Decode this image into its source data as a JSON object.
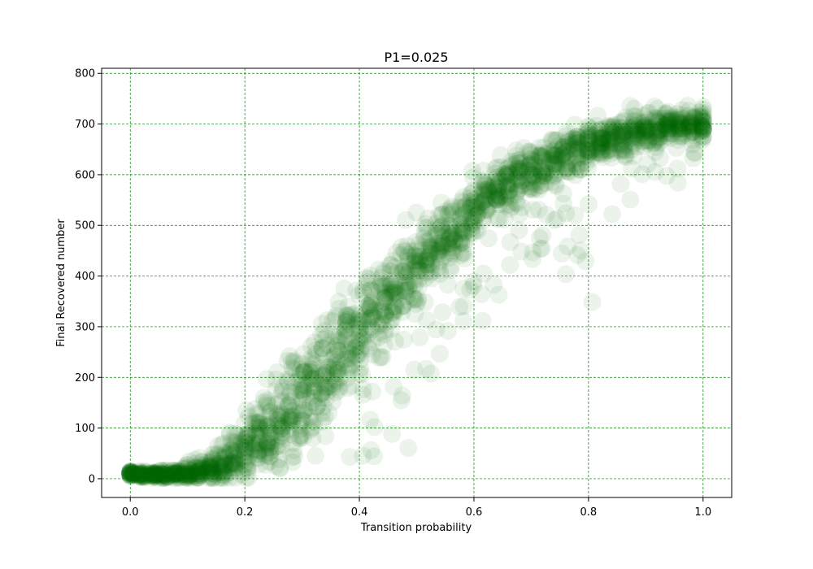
{
  "chart_data": {
    "type": "scatter",
    "title": "P1=0.025",
    "xlabel": "Transition probability",
    "ylabel": "Final Recovered number",
    "xlim": [
      -0.05,
      1.05
    ],
    "ylim": [
      -37,
      810
    ],
    "x_ticks": [
      0.0,
      0.2,
      0.4,
      0.6,
      0.8,
      1.0
    ],
    "x_tick_labels": [
      "0.0",
      "0.2",
      "0.4",
      "0.6",
      "0.8",
      "1.0"
    ],
    "y_ticks": [
      0,
      100,
      200,
      300,
      400,
      500,
      600,
      700,
      800
    ],
    "y_tick_labels": [
      "0",
      "100",
      "200",
      "300",
      "400",
      "500",
      "600",
      "700",
      "800"
    ],
    "grid": true,
    "grid_color": "#008000",
    "marker_color": "#006400",
    "marker_alpha": 0.05,
    "legend": "none",
    "series": [
      {
        "x_step": 0.02,
        "x": [
          0.0,
          0.02,
          0.04,
          0.06,
          0.08,
          0.1,
          0.12,
          0.14,
          0.16,
          0.18,
          0.2,
          0.22,
          0.24,
          0.26,
          0.28,
          0.3,
          0.32,
          0.34,
          0.36,
          0.38,
          0.4,
          0.42,
          0.44,
          0.46,
          0.48,
          0.5,
          0.52,
          0.54,
          0.56,
          0.58,
          0.6,
          0.62,
          0.64,
          0.66,
          0.68,
          0.7,
          0.72,
          0.74,
          0.76,
          0.78,
          0.8,
          0.82,
          0.84,
          0.86,
          0.88,
          0.9,
          0.92,
          0.94,
          0.96,
          0.98,
          1.0
        ],
        "y_center": [
          10,
          8,
          8,
          9,
          10,
          12,
          15,
          22,
          30,
          40,
          55,
          75,
          95,
          118,
          140,
          165,
          190,
          215,
          245,
          270,
          295,
          325,
          350,
          375,
          400,
          425,
          450,
          470,
          490,
          510,
          530,
          548,
          565,
          580,
          595,
          608,
          620,
          630,
          640,
          650,
          658,
          665,
          672,
          678,
          684,
          688,
          692,
          696,
          698,
          700,
          700
        ],
        "y_spread": [
          6,
          6,
          6,
          8,
          10,
          14,
          20,
          30,
          40,
          50,
          60,
          70,
          75,
          80,
          85,
          85,
          85,
          85,
          85,
          85,
          80,
          80,
          80,
          75,
          75,
          70,
          70,
          65,
          65,
          60,
          60,
          55,
          55,
          50,
          50,
          45,
          45,
          45,
          40,
          40,
          40,
          35,
          35,
          35,
          35,
          30,
          30,
          30,
          30,
          30,
          30
        ],
        "y_low_outlier": [
          10,
          8,
          8,
          8,
          8,
          8,
          8,
          10,
          10,
          10,
          10,
          12,
          15,
          15,
          18,
          20,
          20,
          25,
          30,
          20,
          10,
          40,
          25,
          30,
          10,
          200,
          200,
          220,
          160,
          260,
          300,
          180,
          320,
          420,
          400,
          380,
          450,
          420,
          400,
          420,
          320,
          480,
          500,
          480,
          550,
          560,
          600,
          580,
          570,
          620,
          560
        ]
      }
    ]
  }
}
